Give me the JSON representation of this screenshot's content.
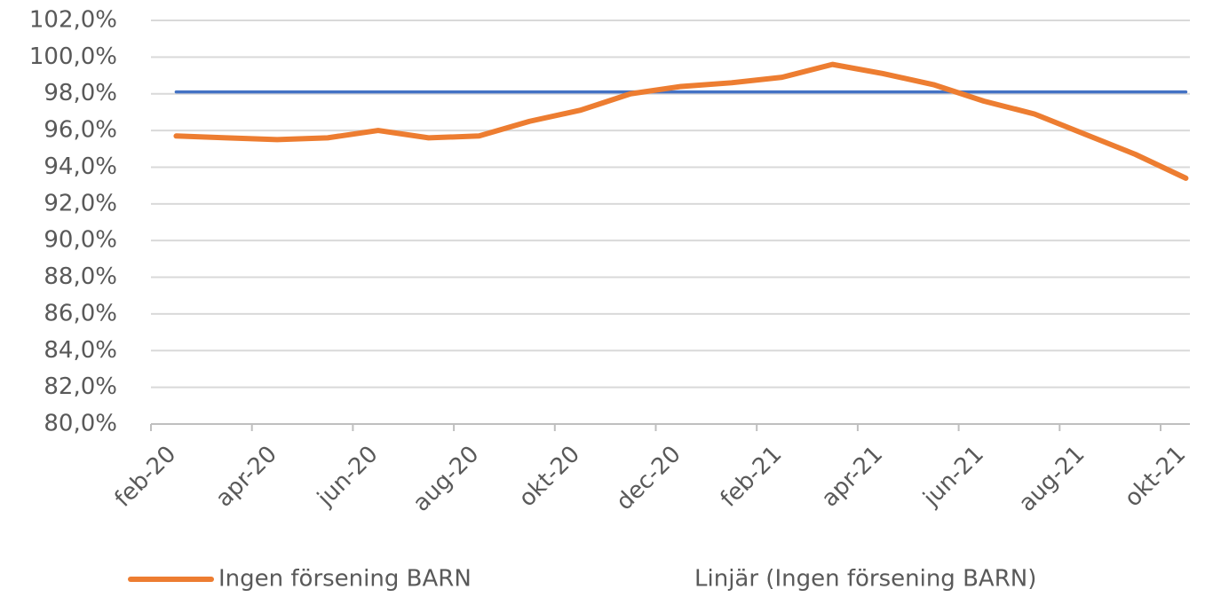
{
  "chart_data": {
    "type": "line",
    "categories": [
      "feb-20",
      null,
      "apr-20",
      null,
      "jun-20",
      null,
      "aug-20",
      null,
      "okt-20",
      null,
      "dec-20",
      null,
      "feb-21",
      null,
      "apr-21",
      null,
      "jun-21",
      null,
      "aug-21",
      null,
      "okt-21"
    ],
    "series": [
      {
        "name": "Ingen försening BARN",
        "color": "#ed7d31",
        "values": [
          95.7,
          95.6,
          95.5,
          95.6,
          96.0,
          95.6,
          95.7,
          96.5,
          97.1,
          98.0,
          98.4,
          98.6,
          98.9,
          99.6,
          99.1,
          98.5,
          97.6,
          96.9,
          95.8,
          94.7,
          93.4
        ]
      },
      {
        "name": "Linjär (Ingen försening BARN)",
        "color": "#4472c4",
        "values": [
          98.1,
          98.1,
          98.1,
          98.1,
          98.1,
          98.1,
          98.1,
          98.1,
          98.1,
          98.1,
          98.1,
          98.1,
          98.1,
          98.1,
          98.1,
          98.1,
          98.1,
          98.1,
          98.1,
          98.1,
          98.1
        ]
      }
    ],
    "ylim": [
      80,
      102
    ],
    "yticks": [
      {
        "value": 80,
        "label": "80,0%"
      },
      {
        "value": 82,
        "label": "82,0%"
      },
      {
        "value": 84,
        "label": "84,0%"
      },
      {
        "value": 86,
        "label": "86,0%"
      },
      {
        "value": 88,
        "label": "88,0%"
      },
      {
        "value": 90,
        "label": "90,0%"
      },
      {
        "value": 92,
        "label": "92,0%"
      },
      {
        "value": 94,
        "label": "94,0%"
      },
      {
        "value": 96,
        "label": "96,0%"
      },
      {
        "value": 98,
        "label": "98,0%"
      },
      {
        "value": 100,
        "label": "100,0%"
      },
      {
        "value": 102,
        "label": "102,0%"
      }
    ],
    "grid": true
  }
}
